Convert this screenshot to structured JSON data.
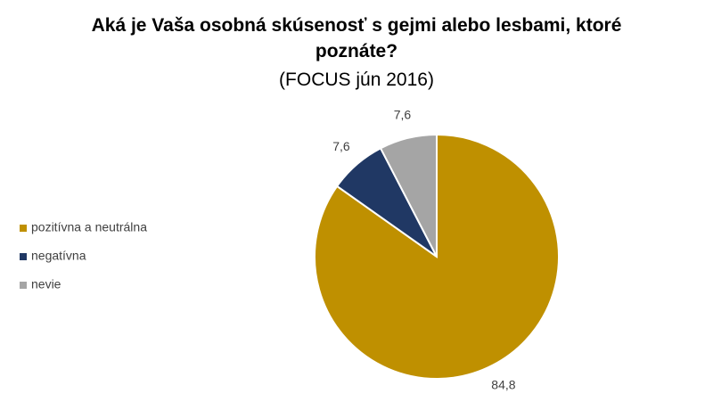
{
  "chart_data": {
    "type": "pie",
    "title": "Aká je Vaša osobná skúsenosť s gejmi alebo lesbami, ktoré poznáte?",
    "subtitle": "(FOCUS jún 2016)",
    "categories": [
      "pozitívna a neutrálna",
      "negatívna",
      "nevie"
    ],
    "values": [
      84.8,
      7.6,
      7.6
    ],
    "value_labels": [
      "84,8",
      "7,6",
      "7,6"
    ],
    "colors": [
      "#bf9000",
      "#203864",
      "#a5a5a5"
    ],
    "legend": "left"
  }
}
